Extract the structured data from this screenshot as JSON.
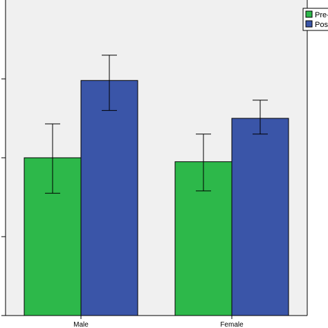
{
  "chart_data": {
    "type": "bar",
    "categories": [
      "Male",
      "Female"
    ],
    "series": [
      {
        "name": "Pre-",
        "color": "#2db84a",
        "values": [
          2.0,
          1.95
        ],
        "error_low": [
          1.55,
          1.58
        ],
        "error_high": [
          2.43,
          2.3
        ]
      },
      {
        "name": "Post",
        "color": "#3a55a8",
        "values": [
          2.98,
          2.5
        ],
        "error_low": [
          2.6,
          2.3
        ],
        "error_high": [
          3.3,
          2.73
        ]
      }
    ],
    "ylim": [
      0,
      4
    ],
    "yticks": [
      0,
      1,
      2,
      3
    ],
    "grid": false,
    "legend_position": "top-right",
    "plot_background": "#f0f0f0",
    "bar_outline": "#000000"
  }
}
